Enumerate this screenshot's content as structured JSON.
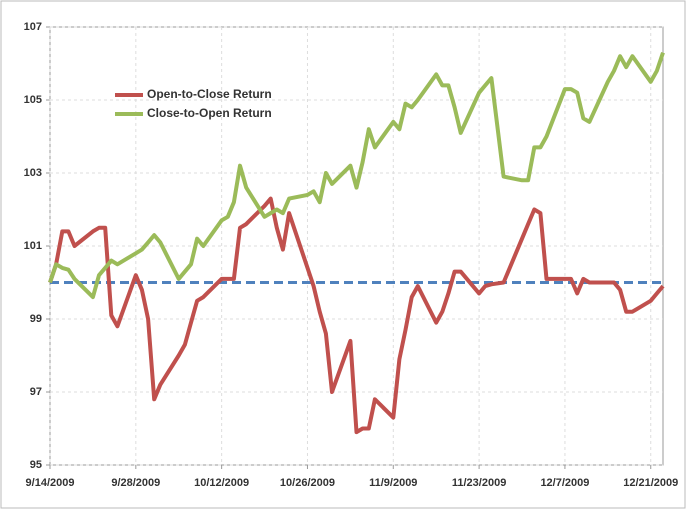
{
  "chart_data": {
    "type": "line",
    "x": [
      "2009-09-14",
      "2009-09-15",
      "2009-09-16",
      "2009-09-17",
      "2009-09-18",
      "2009-09-21",
      "2009-09-22",
      "2009-09-23",
      "2009-09-24",
      "2009-09-25",
      "2009-09-28",
      "2009-09-29",
      "2009-09-30",
      "2009-10-01",
      "2009-10-02",
      "2009-10-05",
      "2009-10-06",
      "2009-10-07",
      "2009-10-08",
      "2009-10-09",
      "2009-10-12",
      "2009-10-13",
      "2009-10-14",
      "2009-10-15",
      "2009-10-16",
      "2009-10-19",
      "2009-10-20",
      "2009-10-21",
      "2009-10-22",
      "2009-10-23",
      "2009-10-26",
      "2009-10-27",
      "2009-10-28",
      "2009-10-29",
      "2009-10-30",
      "2009-11-02",
      "2009-11-03",
      "2009-11-04",
      "2009-11-05",
      "2009-11-06",
      "2009-11-09",
      "2009-11-10",
      "2009-11-11",
      "2009-11-12",
      "2009-11-13",
      "2009-11-16",
      "2009-11-17",
      "2009-11-18",
      "2009-11-19",
      "2009-11-20",
      "2009-11-23",
      "2009-11-24",
      "2009-11-25",
      "2009-11-27",
      "2009-11-30",
      "2009-12-01",
      "2009-12-02",
      "2009-12-03",
      "2009-12-04",
      "2009-12-07",
      "2009-12-08",
      "2009-12-09",
      "2009-12-10",
      "2009-12-11",
      "2009-12-14",
      "2009-12-15",
      "2009-12-16",
      "2009-12-17",
      "2009-12-18",
      "2009-12-21",
      "2009-12-22",
      "2009-12-23"
    ],
    "series": [
      {
        "name": "Open-to-Close Return",
        "color": "#c0504d",
        "values": [
          100.0,
          100.5,
          101.4,
          101.4,
          101.0,
          101.4,
          101.5,
          101.5,
          99.1,
          98.8,
          100.2,
          99.8,
          99.0,
          96.8,
          97.2,
          98.0,
          98.3,
          98.9,
          99.5,
          99.6,
          100.1,
          100.1,
          100.1,
          101.5,
          101.6,
          102.1,
          102.3,
          101.5,
          100.9,
          101.9,
          100.4,
          99.9,
          99.2,
          98.6,
          97.0,
          98.4,
          95.9,
          96.0,
          96.0,
          96.8,
          96.3,
          97.9,
          98.7,
          99.6,
          99.9,
          98.9,
          99.2,
          99.7,
          100.3,
          100.3,
          99.7,
          99.9,
          99.95,
          100.0,
          101.2,
          101.6,
          102.0,
          101.9,
          100.1,
          100.1,
          100.1,
          99.7,
          100.1,
          100.0,
          100.0,
          100.0,
          99.8,
          99.2,
          99.2,
          99.5,
          99.7,
          99.9
        ]
      },
      {
        "name": "Close-to-Open Return",
        "color": "#9bbb59",
        "values": [
          100.0,
          100.5,
          100.4,
          100.35,
          100.1,
          99.6,
          100.2,
          100.4,
          100.6,
          100.5,
          100.8,
          100.9,
          101.1,
          101.3,
          101.1,
          100.1,
          100.3,
          100.5,
          101.2,
          101.0,
          101.7,
          101.8,
          102.2,
          103.2,
          102.6,
          101.8,
          101.9,
          102.0,
          101.9,
          102.3,
          102.4,
          102.5,
          102.2,
          103.0,
          102.7,
          103.2,
          102.6,
          103.3,
          104.2,
          103.7,
          104.4,
          104.2,
          104.9,
          104.8,
          105.0,
          105.7,
          105.4,
          105.4,
          104.8,
          104.1,
          105.2,
          105.4,
          105.6,
          102.9,
          102.8,
          102.8,
          103.7,
          103.7,
          104.0,
          105.3,
          105.3,
          105.2,
          104.5,
          104.4,
          105.5,
          105.8,
          106.2,
          105.9,
          106.2,
          105.5,
          105.8,
          106.3
        ]
      }
    ],
    "reference_line": 100,
    "reference_color": "#4f81bd",
    "xlim": [
      "2009-09-14",
      "2009-12-23"
    ],
    "xticks": [
      {
        "value": "2009-09-14",
        "label": "9/14/2009"
      },
      {
        "value": "2009-09-28",
        "label": "9/28/2009"
      },
      {
        "value": "2009-10-12",
        "label": "10/12/2009"
      },
      {
        "value": "2009-10-26",
        "label": "10/26/2009"
      },
      {
        "value": "2009-11-09",
        "label": "11/9/2009"
      },
      {
        "value": "2009-11-23",
        "label": "11/23/2009"
      },
      {
        "value": "2009-12-07",
        "label": "12/7/2009"
      },
      {
        "value": "2009-12-21",
        "label": "12/21/2009"
      }
    ],
    "ylim": [
      95,
      107
    ],
    "yticks": [
      95,
      97,
      99,
      101,
      103,
      105,
      107
    ],
    "grid": true,
    "legend": "upper-left"
  }
}
